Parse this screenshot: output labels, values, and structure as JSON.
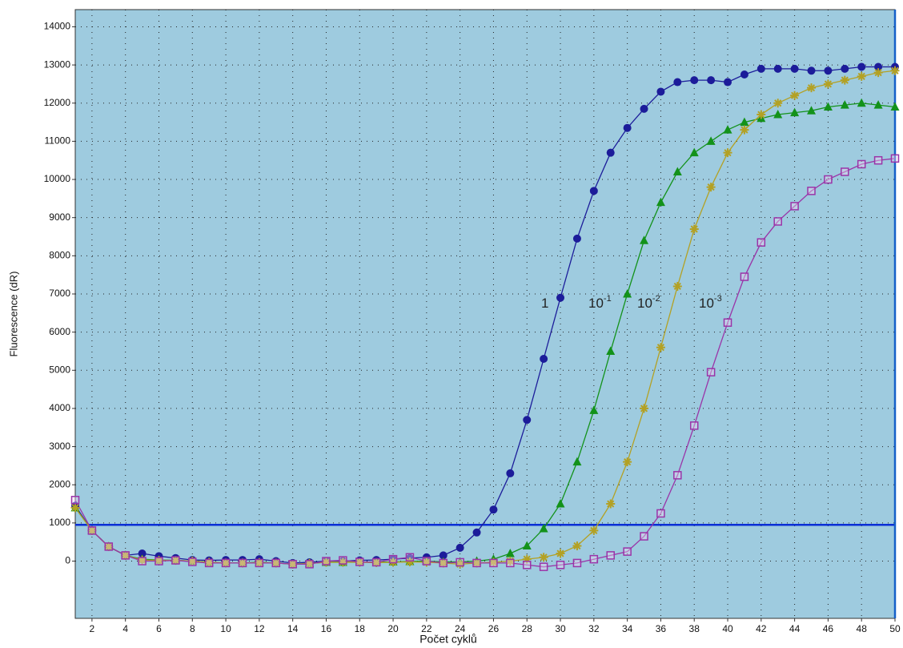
{
  "chart_data": {
    "type": "line",
    "xlabel": "Počet cyklů",
    "ylabel": "Fluorescence (dR)",
    "x": [
      1,
      2,
      3,
      4,
      5,
      6,
      7,
      8,
      9,
      10,
      11,
      12,
      13,
      14,
      15,
      16,
      17,
      18,
      19,
      20,
      21,
      22,
      23,
      24,
      25,
      26,
      27,
      28,
      29,
      30,
      31,
      32,
      33,
      34,
      35,
      36,
      37,
      38,
      39,
      40,
      41,
      42,
      43,
      44,
      45,
      46,
      47,
      48,
      49,
      50
    ],
    "xlim": [
      1,
      50
    ],
    "xticks": [
      2,
      4,
      6,
      8,
      10,
      12,
      14,
      16,
      18,
      20,
      22,
      24,
      26,
      28,
      30,
      32,
      34,
      36,
      38,
      40,
      42,
      44,
      46,
      48,
      50
    ],
    "ylim": [
      -1500,
      14450
    ],
    "yticks": [
      0,
      1000,
      2000,
      3000,
      4000,
      5000,
      6000,
      7000,
      8000,
      9000,
      10000,
      11000,
      12000,
      13000,
      14000
    ],
    "grid": true,
    "background": "#9ecbdf",
    "threshold": 950,
    "threshold_color": "#0a2fd6",
    "vline": 50,
    "vline_color": "#1560c8",
    "series": [
      {
        "color": "#1c1c9a",
        "marker": "circle",
        "values": [
          1450,
          800,
          380,
          150,
          200,
          130,
          80,
          30,
          20,
          30,
          30,
          50,
          0,
          -50,
          -30,
          0,
          0,
          20,
          30,
          50,
          80,
          100,
          150,
          350,
          750,
          1350,
          2300,
          3700,
          5300,
          6900,
          8450,
          9700,
          10700,
          11350,
          11850,
          12300,
          12550,
          12600,
          12600,
          12550,
          12750,
          12900,
          12900,
          12900,
          12850,
          12850,
          12900,
          12950,
          12950,
          12950
        ]
      },
      {
        "color": "#13921a",
        "marker": "triangle",
        "values": [
          1400,
          800,
          380,
          150,
          50,
          30,
          20,
          0,
          -30,
          -50,
          -50,
          -30,
          -50,
          -80,
          -60,
          -30,
          -30,
          -20,
          -30,
          -20,
          -10,
          0,
          -20,
          -20,
          0,
          50,
          200,
          400,
          850,
          1500,
          2600,
          3950,
          5500,
          7000,
          8400,
          9400,
          10200,
          10700,
          11000,
          11300,
          11500,
          11600,
          11700,
          11750,
          11800,
          11900,
          11950,
          12000,
          11950,
          11900
        ]
      },
      {
        "color": "#b3a124",
        "marker": "star",
        "values": [
          1400,
          800,
          380,
          150,
          30,
          20,
          20,
          0,
          -30,
          -50,
          -50,
          -40,
          -50,
          -80,
          -60,
          -30,
          -30,
          -30,
          -40,
          -30,
          -20,
          -30,
          -50,
          -80,
          -50,
          -30,
          0,
          50,
          100,
          200,
          400,
          800,
          1500,
          2600,
          4000,
          5600,
          7200,
          8700,
          9800,
          10700,
          11300,
          11700,
          12000,
          12200,
          12400,
          12500,
          12600,
          12700,
          12800,
          12850
        ]
      },
      {
        "color": "#9a34a8",
        "marker": "square",
        "values": [
          1600,
          800,
          380,
          150,
          0,
          0,
          20,
          -20,
          -50,
          -50,
          -50,
          -50,
          -50,
          -80,
          -80,
          0,
          20,
          -20,
          -30,
          50,
          100,
          0,
          -50,
          -30,
          -50,
          -50,
          -50,
          -100,
          -150,
          -100,
          -50,
          50,
          150,
          250,
          650,
          1250,
          2250,
          3550,
          4950,
          6250,
          7450,
          8350,
          8900,
          9300,
          9700,
          10000,
          10200,
          10400,
          10500,
          10550
        ]
      }
    ],
    "annotations": [
      {
        "text": "1"
      },
      {
        "text": "10",
        "sup": "-1"
      },
      {
        "text": "10",
        "sup": "-2"
      },
      {
        "text": "10",
        "sup": "-3"
      }
    ]
  }
}
